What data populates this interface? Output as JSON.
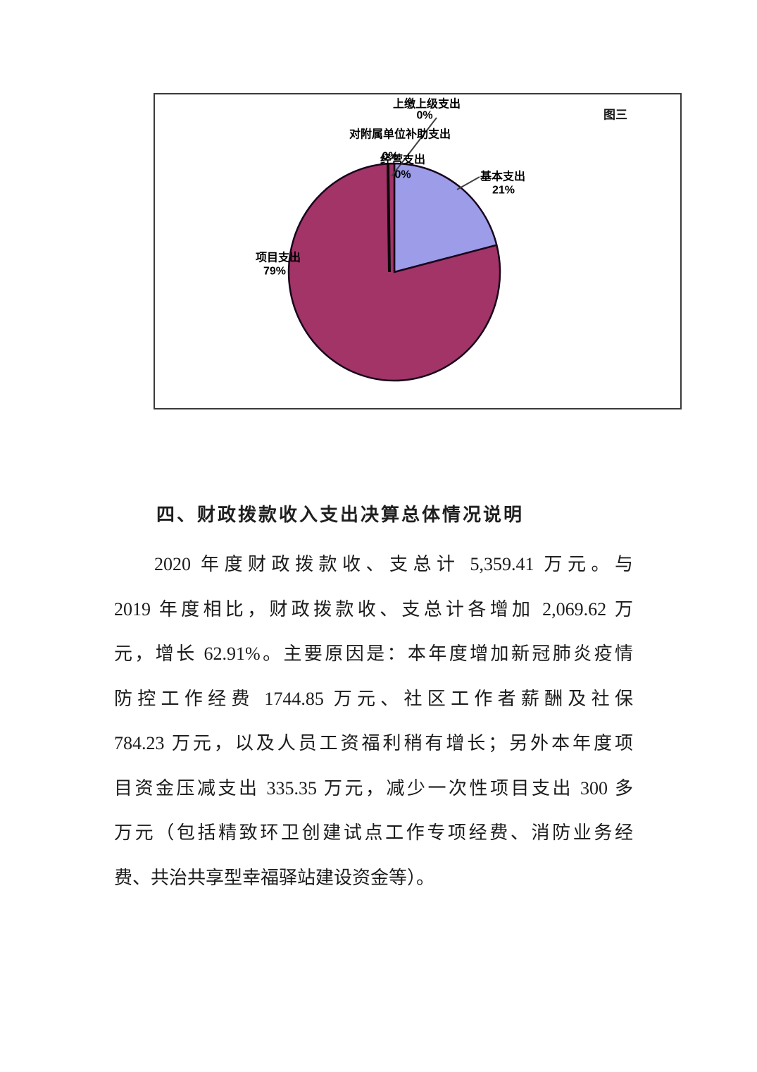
{
  "figure": {
    "tag_label": "图三"
  },
  "chart_data": {
    "type": "pie",
    "figure_label": "图三",
    "legend_position": "none",
    "start_angle_deg": 0,
    "direction": "clockwise",
    "slices": [
      {
        "name": "基本支出",
        "value": 21,
        "pct_label": "21%",
        "color": "#9C9CE8"
      },
      {
        "name": "项目支出",
        "value": 79,
        "pct_label": "79%",
        "color": "#A23467"
      },
      {
        "name": "经营支出",
        "value": 0,
        "pct_label": "0%"
      },
      {
        "name": "对附属单位补助支出",
        "value": 0,
        "pct_label": "0%"
      },
      {
        "name": "上缴上级支出",
        "value": 0,
        "pct_label": "0%"
      }
    ]
  },
  "section": {
    "heading": "四、财政拨款收入支出决算总体情况说明"
  },
  "paragraph": {
    "lines": [
      "2020 年度财政拨款收、支总计 5,359.41 万元。与",
      "2019 年度相比，财政拨款收、支总计各增加 2,069.62 万",
      "元，增长 62.91%。主要原因是：本年度增加新冠肺炎疫情",
      "防控工作经费 1744.85 万元、社区工作者薪酬及社保",
      "784.23 万元，以及人员工资福利稍有增长；另外本年度项",
      "目资金压减支出 335.35 万元，减少一次性项目支出 300 多",
      "万元（包括精致环卫创建试点工作专项经费、消防业务经",
      "费、共治共享型幸福驿站建设资金等）。"
    ]
  }
}
